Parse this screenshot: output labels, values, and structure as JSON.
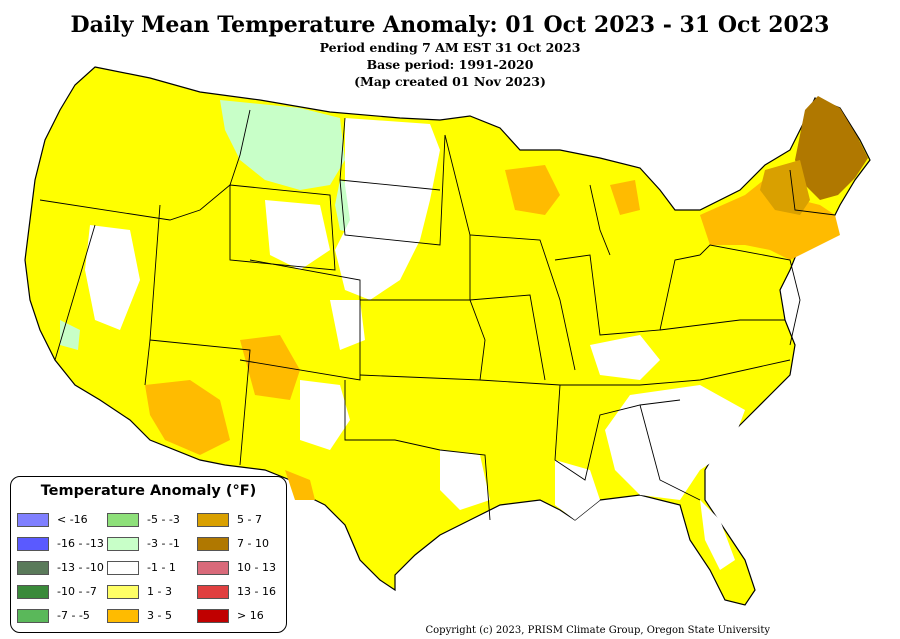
{
  "header": {
    "title": "Daily Mean Temperature Anomaly: 01 Oct 2023 - 31 Oct 2023",
    "line1": "Period ending 7 AM EST 31 Oct 2023",
    "line2": "Base period: 1991-2020",
    "line3": "(Map created 01 Nov 2023)"
  },
  "legend": {
    "title": "Temperature Anomaly (°F)",
    "items": [
      {
        "label": "< -16",
        "color": "#8080ff"
      },
      {
        "label": "-16 - -13",
        "color": "#5a5aff"
      },
      {
        "label": "-13 - -10",
        "color": "#5a7a5a"
      },
      {
        "label": "-10 - -7",
        "color": "#3a8a3a"
      },
      {
        "label": "-7 - -5",
        "color": "#5ab85a"
      },
      {
        "label": "-5 - -3",
        "color": "#8ee07a"
      },
      {
        "label": "-3 - -1",
        "color": "#c8ffc8"
      },
      {
        "label": "-1 - 1",
        "color": "#ffffff"
      },
      {
        "label": "1 - 3",
        "color": "#ffff66"
      },
      {
        "label": "3 - 5",
        "color": "#ffbb00"
      },
      {
        "label": "5 - 7",
        "color": "#d9a000"
      },
      {
        "label": "7 - 10",
        "color": "#b07800"
      },
      {
        "label": "10 - 13",
        "color": "#d96a7a"
      },
      {
        "label": "13 - 16",
        "color": "#e04040"
      },
      {
        "label": "> 16",
        "color": "#c00000"
      }
    ]
  },
  "footer": {
    "copyright": "Copyright (c) 2023, PRISM Climate Group, Oregon State University"
  },
  "colors": {
    "main_fill": "#ffff00",
    "warm_3_5": "#ffbb00",
    "warm_7_10": "#b07800",
    "cool_1_3": "#c8ffc8",
    "neutral": "#ffffff",
    "state_border": "#000000"
  }
}
